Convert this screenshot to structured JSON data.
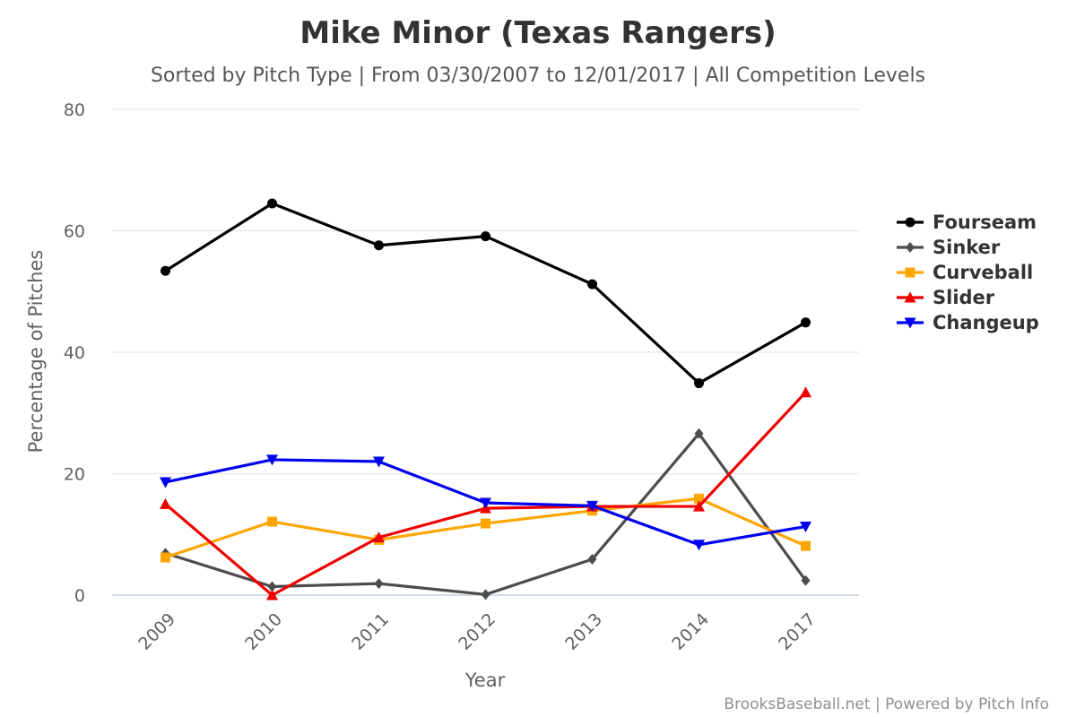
{
  "chart_data": {
    "type": "line",
    "title": "Mike Minor (Texas Rangers)",
    "subtitle": "Sorted by Pitch Type | From 03/30/2007 to 12/01/2017 | All Competition Levels",
    "xlabel": "Year",
    "ylabel": "Percentage of Pitches",
    "categories": [
      "2009",
      "2010",
      "2011",
      "2012",
      "2013",
      "2014",
      "2017"
    ],
    "ylim": [
      0,
      80
    ],
    "yticks": [
      0,
      20,
      40,
      60,
      80
    ],
    "grid": true,
    "legend_position": "right",
    "series": [
      {
        "name": "Fourseam",
        "color": "#000000",
        "marker": "circle",
        "values": [
          53.4,
          64.5,
          57.6,
          59.1,
          51.2,
          34.9,
          44.9
        ]
      },
      {
        "name": "Sinker",
        "color": "#4d4d4d",
        "marker": "diamond",
        "values": [
          6.9,
          1.4,
          1.9,
          0.1,
          5.9,
          26.6,
          2.4
        ]
      },
      {
        "name": "Curveball",
        "color": "#ffa500",
        "marker": "square",
        "values": [
          6.2,
          12.1,
          9.1,
          11.8,
          13.9,
          15.9,
          8.1
        ]
      },
      {
        "name": "Slider",
        "color": "#ee0000",
        "marker": "triangle-up",
        "values": [
          15.0,
          0.0,
          9.5,
          14.3,
          14.6,
          14.6,
          33.4
        ]
      },
      {
        "name": "Changeup",
        "color": "#0000ee",
        "marker": "triangle-down",
        "values": [
          18.6,
          22.3,
          22.0,
          15.2,
          14.7,
          8.3,
          11.3
        ]
      }
    ]
  },
  "credits": "BrooksBaseball.net | Powered by Pitch Info"
}
